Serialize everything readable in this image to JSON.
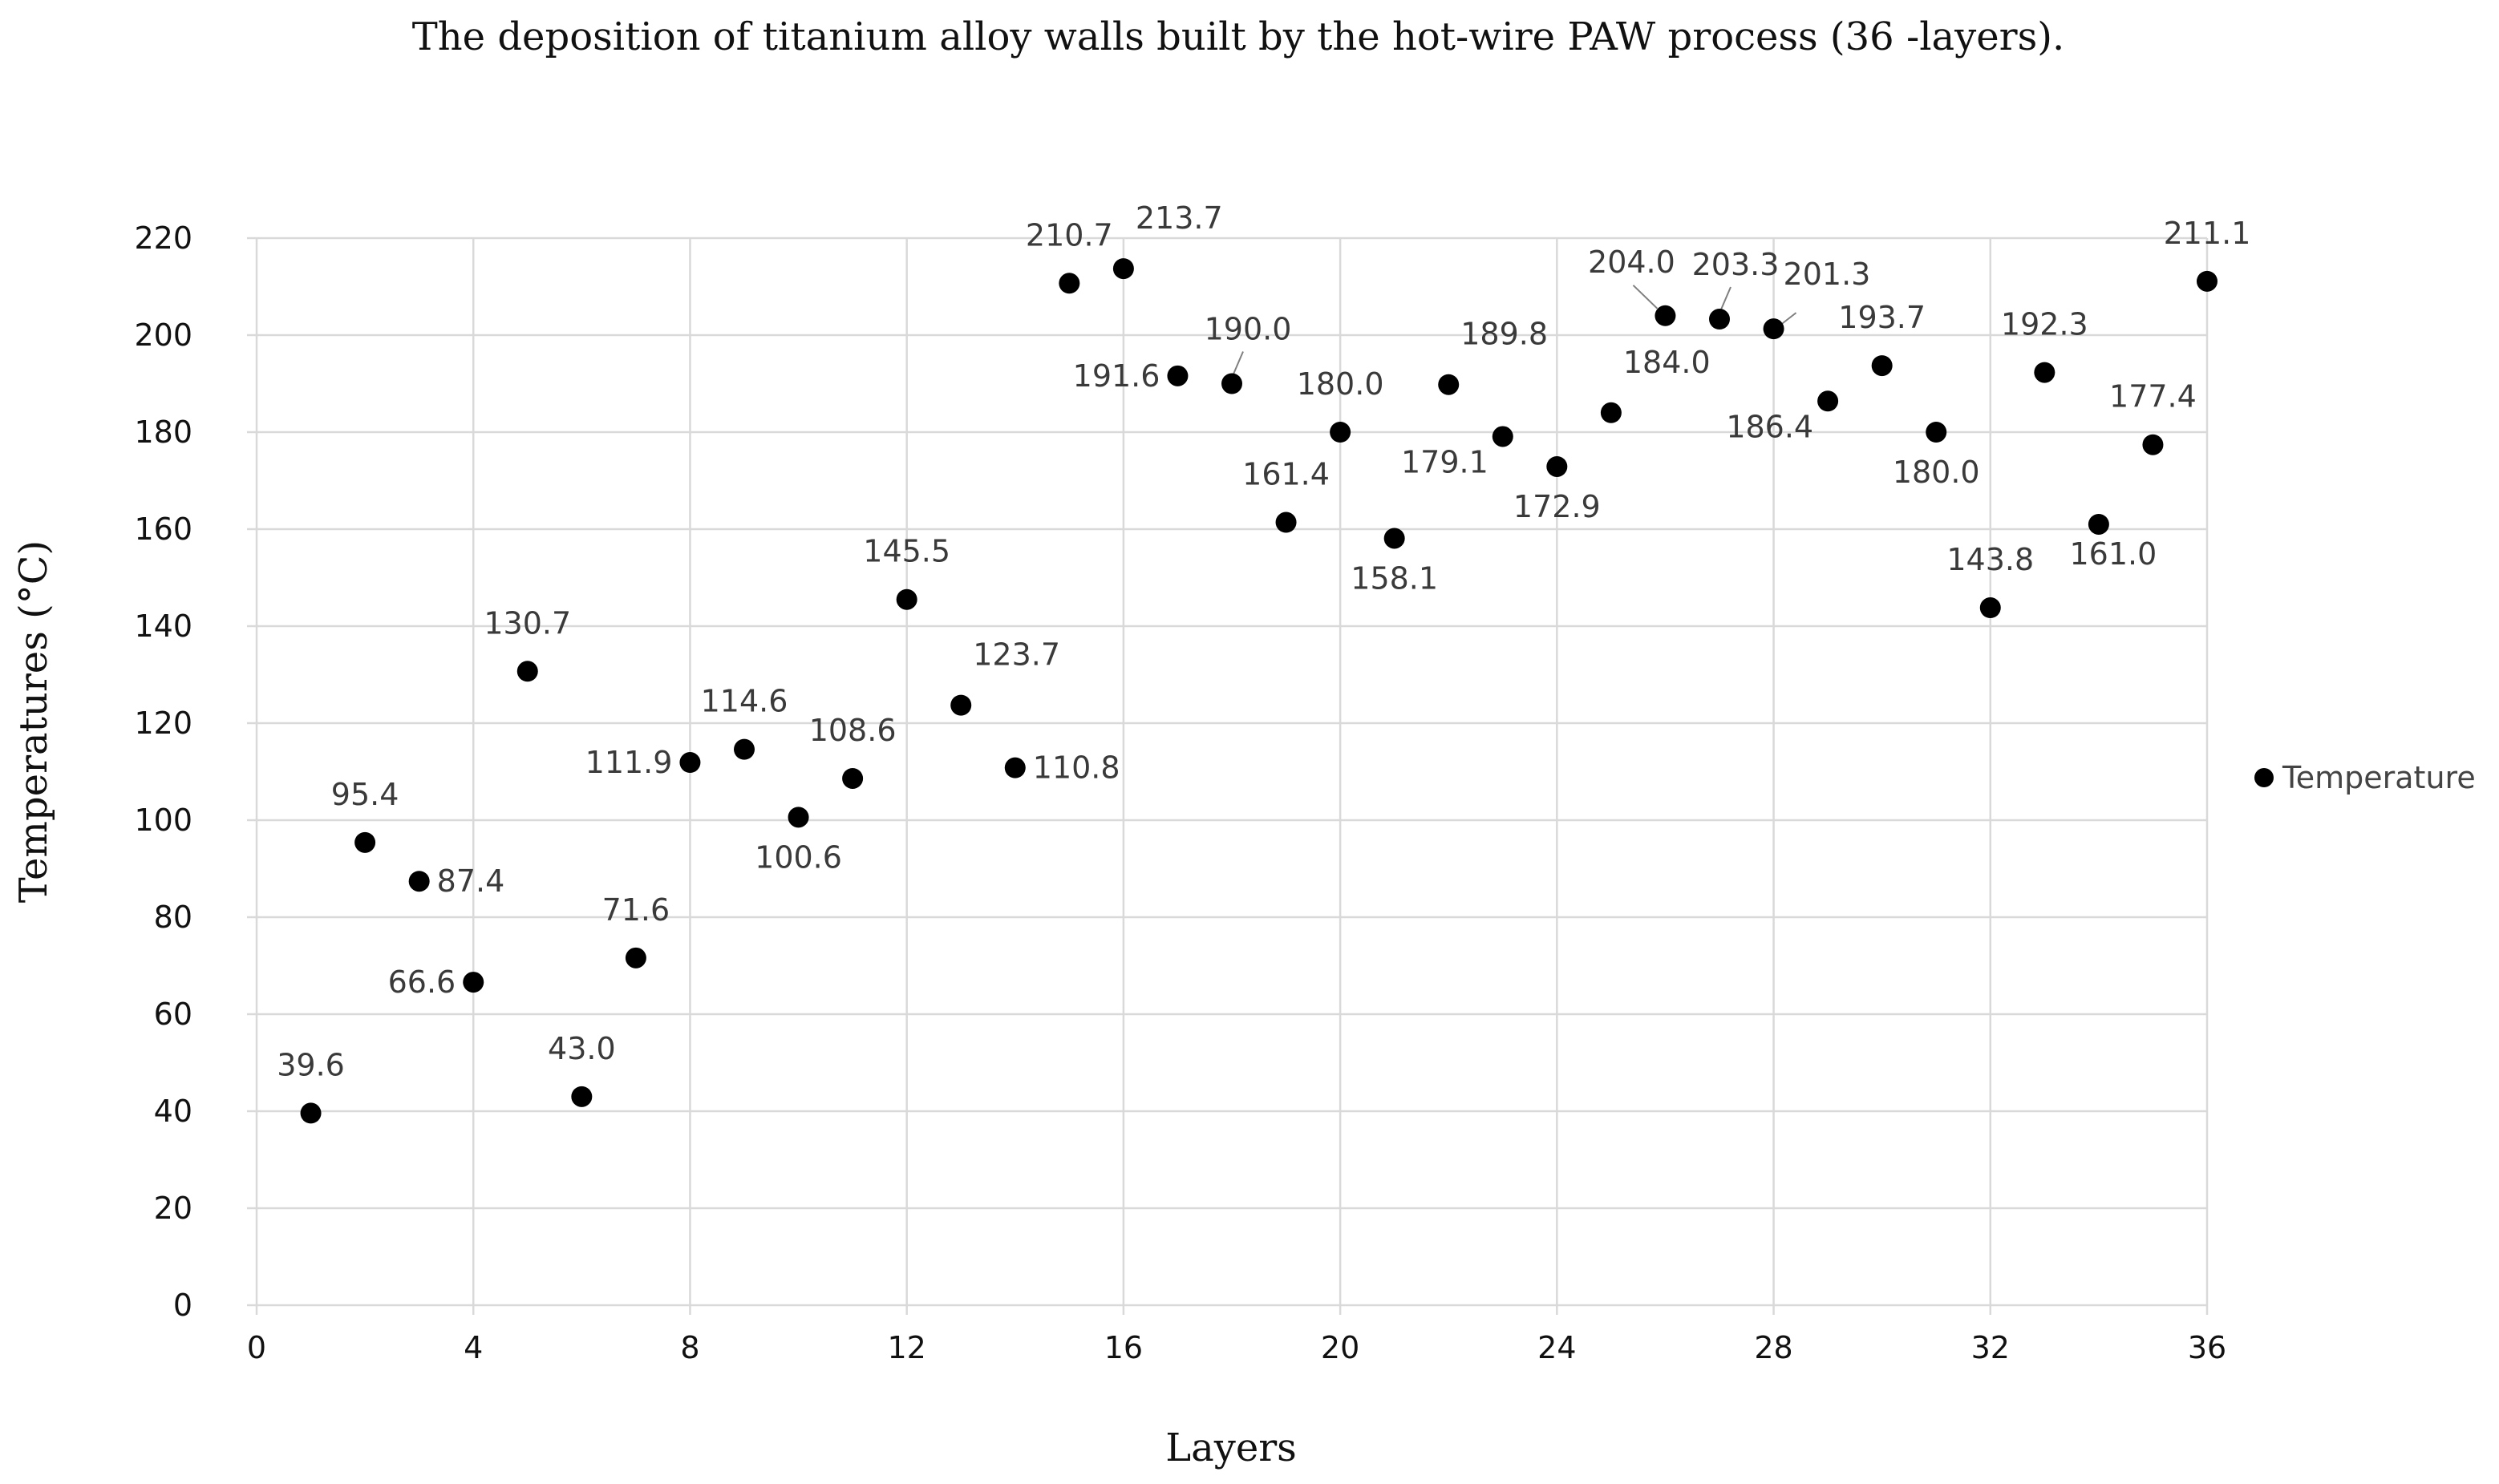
{
  "chart_data": {
    "type": "scatter",
    "title": "The deposition of titanium alloy walls built by the hot-wire PAW process (36 -layers).",
    "xlabel": "Layers",
    "ylabel": "Temperatures (°C)",
    "xlim": [
      0,
      36
    ],
    "ylim": [
      0,
      220
    ],
    "x_ticks": [
      0,
      4,
      8,
      12,
      16,
      20,
      24,
      28,
      32,
      36
    ],
    "y_ticks": [
      0,
      20,
      40,
      60,
      80,
      100,
      120,
      140,
      160,
      180,
      200,
      220
    ],
    "grid": true,
    "legend_position": "right",
    "point_color": "#000000",
    "series": [
      {
        "name": "Temperature",
        "points": [
          {
            "x": 1,
            "y": 39.6,
            "label": "39.6",
            "label_side": "above"
          },
          {
            "x": 2,
            "y": 95.4,
            "label": "95.4",
            "label_side": "above"
          },
          {
            "x": 3,
            "y": 87.4,
            "label": "87.4",
            "label_side": "right"
          },
          {
            "x": 4,
            "y": 66.6,
            "label": "66.6",
            "label_side": "left"
          },
          {
            "x": 5,
            "y": 130.7,
            "label": "130.7",
            "label_side": "above"
          },
          {
            "x": 6,
            "y": 43.0,
            "label": "43.0",
            "label_side": "above"
          },
          {
            "x": 7,
            "y": 71.6,
            "label": "71.6",
            "label_side": "above"
          },
          {
            "x": 8,
            "y": 111.9,
            "label": "111.9",
            "label_side": "left"
          },
          {
            "x": 9,
            "y": 114.6,
            "label": "114.6",
            "label_side": "above"
          },
          {
            "x": 10,
            "y": 100.6,
            "label": "100.6",
            "label_side": "below"
          },
          {
            "x": 11,
            "y": 108.6,
            "label": "108.6",
            "label_side": "above"
          },
          {
            "x": 12,
            "y": 145.5,
            "label": "145.5",
            "label_side": "above"
          },
          {
            "x": 13,
            "y": 123.7,
            "label": "123.7",
            "label_side": "above-right"
          },
          {
            "x": 14,
            "y": 110.8,
            "label": "110.8",
            "label_side": "right"
          },
          {
            "x": 15,
            "y": 210.7,
            "label": "210.7",
            "label_side": "above"
          },
          {
            "x": 16,
            "y": 213.7,
            "label": "213.7",
            "label_side": "above-right"
          },
          {
            "x": 17,
            "y": 191.6,
            "label": "191.6",
            "label_side": "left"
          },
          {
            "x": 18,
            "y": 190.0,
            "label": "190.0",
            "label_side": "above-leader"
          },
          {
            "x": 19,
            "y": 161.4,
            "label": "161.4",
            "label_side": "above"
          },
          {
            "x": 20,
            "y": 180.0,
            "label": "180.0",
            "label_side": "above"
          },
          {
            "x": 21,
            "y": 158.1,
            "label": "158.1",
            "label_side": "below"
          },
          {
            "x": 22,
            "y": 189.8,
            "label": "189.8",
            "label_side": "above-right"
          },
          {
            "x": 23,
            "y": 179.1,
            "label": "179.1",
            "label_side": "below-left"
          },
          {
            "x": 24,
            "y": 172.9,
            "label": "172.9",
            "label_side": "below"
          },
          {
            "x": 25,
            "y": 184.0,
            "label": "184.0",
            "label_side": "above-right"
          },
          {
            "x": 26,
            "y": 204.0,
            "label": "204.0",
            "label_side": "above-left-leader"
          },
          {
            "x": 27,
            "y": 203.3,
            "label": "203.3",
            "label_side": "above-leader"
          },
          {
            "x": 28,
            "y": 201.3,
            "label": "201.3",
            "label_side": "right-leader"
          },
          {
            "x": 29,
            "y": 186.4,
            "label": "186.4",
            "label_side": "below-left"
          },
          {
            "x": 30,
            "y": 193.7,
            "label": "193.7",
            "label_side": "above"
          },
          {
            "x": 31,
            "y": 180.0,
            "label": "180.0",
            "label_side": "below"
          },
          {
            "x": 32,
            "y": 143.8,
            "label": "143.8",
            "label_side": "above"
          },
          {
            "x": 33,
            "y": 192.3,
            "label": "192.3",
            "label_side": "above"
          },
          {
            "x": 34,
            "y": 161.0,
            "label": "161.0",
            "label_side": "below-right"
          },
          {
            "x": 35,
            "y": 177.4,
            "label": "177.4",
            "label_side": "above"
          },
          {
            "x": 36,
            "y": 211.1,
            "label": "211.1",
            "label_side": "above"
          }
        ]
      }
    ]
  }
}
